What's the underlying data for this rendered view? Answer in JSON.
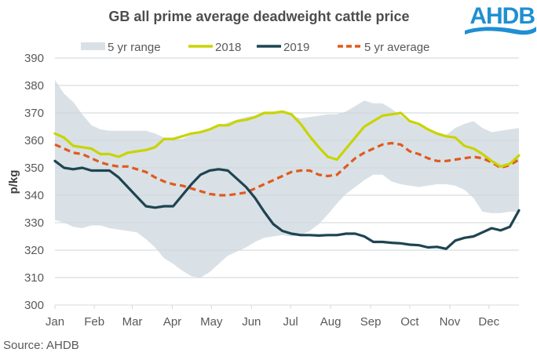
{
  "header": {
    "logo_text": "AHDB",
    "logo_color": "#1f8fd3"
  },
  "footer": {
    "source": "Source: AHDB"
  },
  "chart_data": {
    "type": "line",
    "title": "GB all prime average deadweight cattle price",
    "xlabel": "",
    "ylabel": "p/kg",
    "ylim": [
      300,
      390
    ],
    "yticks": [
      300,
      310,
      320,
      330,
      340,
      350,
      360,
      370,
      380,
      390
    ],
    "ytick_labels": [
      "300",
      "310",
      "320",
      "330",
      "340",
      "350",
      "360",
      "370",
      "380",
      "390"
    ],
    "x_unit": "week",
    "x_count": 52,
    "month_labels": [
      "Jan",
      "Feb",
      "Mar",
      "Apr",
      "May",
      "Jun",
      "Jul",
      "Aug",
      "Sep",
      "Oct",
      "Nov",
      "Dec"
    ],
    "month_tick_weeks": [
      0,
      4.33,
      8.5,
      12.9,
      17.2,
      21.6,
      25.9,
      30.3,
      34.7,
      39.0,
      43.4,
      47.7
    ],
    "grid": true,
    "legend_position": "top",
    "legend": [
      {
        "name": "5 yr range",
        "kind": "area",
        "color": "#d9e1e6"
      },
      {
        "name": "2018",
        "kind": "line",
        "color": "#c8d400"
      },
      {
        "name": "2019",
        "kind": "line",
        "color": "#1e4452"
      },
      {
        "name": "5 yr average",
        "kind": "dashed",
        "color": "#e05a1e"
      }
    ],
    "range": {
      "name": "5 yr range",
      "color": "#d9e1e6",
      "upper": [
        382,
        377,
        374,
        369.5,
        365.5,
        364,
        363.5,
        363.5,
        363.5,
        363.5,
        363.5,
        362.5,
        361,
        360.5,
        360.5,
        362,
        363,
        363.5,
        365,
        366.5,
        367.5,
        368.5,
        369,
        370,
        370.5,
        370.5,
        369,
        368,
        368.5,
        369,
        369.5,
        369.5,
        370.5,
        372.5,
        374.5,
        373.5,
        373.5,
        371.5,
        369,
        366.5,
        365.5,
        364,
        363,
        362,
        364.5,
        366,
        367,
        364.5,
        363,
        363.5,
        364,
        364.5
      ],
      "lower": [
        331,
        330,
        328.5,
        328,
        329,
        329,
        328,
        327.5,
        327,
        326.5,
        324,
        321,
        317,
        315,
        312.5,
        310.5,
        310,
        312,
        315,
        318,
        319.5,
        321,
        323,
        324.5,
        325,
        325.5,
        325,
        325.5,
        327,
        329.5,
        333,
        337,
        340.5,
        343,
        345.5,
        347.5,
        347.5,
        345,
        344,
        343.5,
        343,
        343.5,
        344,
        344,
        343.5,
        342,
        339,
        334,
        333.5,
        333.5,
        334,
        334
      ]
    },
    "series": [
      {
        "name": "2018",
        "color": "#c8d400",
        "dashed": false,
        "values": [
          362.5,
          361,
          358,
          357.5,
          357,
          355,
          355,
          354,
          355.5,
          356,
          356.5,
          357.5,
          360.5,
          360.5,
          361.5,
          362.5,
          363,
          364,
          365.5,
          365.5,
          367,
          367.5,
          368.5,
          370,
          370,
          370.5,
          369.5,
          366,
          361.5,
          357.5,
          354,
          353,
          357,
          361,
          365,
          367,
          369,
          369.5,
          370,
          367,
          366,
          364,
          362.5,
          361.5,
          361,
          358,
          357,
          355,
          352.5,
          350.5,
          351.5,
          354.5
        ]
      },
      {
        "name": "2019",
        "color": "#1e4452",
        "dashed": false,
        "values": [
          352.5,
          350,
          349.5,
          350,
          349,
          349,
          349,
          346.5,
          343,
          339.5,
          336,
          335.5,
          336,
          336,
          340,
          344,
          347.5,
          349,
          349.5,
          349,
          346,
          343,
          339,
          334,
          329.5,
          327,
          326,
          325.5,
          325.5,
          325.3,
          325.5,
          325.5,
          326,
          326,
          325,
          323,
          323,
          322.7,
          322.5,
          322,
          321.8,
          321,
          321.2,
          320.5,
          323.5,
          324.5,
          325,
          326.5,
          328,
          327.2,
          328.5,
          334.5
        ]
      },
      {
        "name": "5 yr average",
        "color": "#e05a1e",
        "dashed": true,
        "values": [
          358.5,
          357,
          355.5,
          355,
          353.5,
          352,
          351,
          350.5,
          350.5,
          349.5,
          348.5,
          346.5,
          345,
          344,
          343.5,
          342.5,
          341.5,
          340.5,
          340,
          340,
          340.5,
          341,
          342.5,
          344,
          345.5,
          347,
          348.5,
          349,
          349,
          347.5,
          347,
          347.5,
          350.5,
          353.5,
          355.5,
          357,
          358.5,
          359,
          358.5,
          356,
          355,
          353.5,
          352.5,
          352.5,
          353,
          353.5,
          354,
          353.5,
          352,
          350,
          351,
          353
        ]
      }
    ]
  }
}
